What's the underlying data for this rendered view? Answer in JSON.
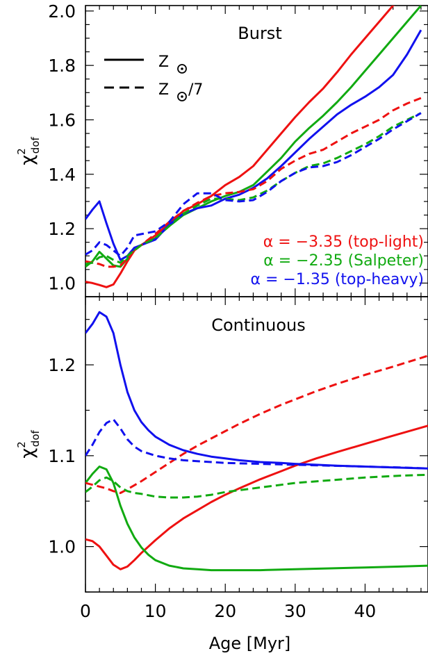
{
  "chart_data": [
    {
      "type": "line",
      "panel": "top",
      "title": "Burst",
      "ylabel_main": "χ",
      "ylabel_sup": "2",
      "ylabel_sub": "dof",
      "xlim": [
        0,
        49
      ],
      "ylim": [
        0.95,
        2.02
      ],
      "yticks": [
        1.0,
        1.2,
        1.4,
        1.6,
        1.8,
        2.0
      ],
      "ytick_labels": [
        "1.0",
        "1.2",
        "1.4",
        "1.6",
        "1.8",
        "2.0"
      ],
      "linestyle_legend": [
        {
          "style": "solid",
          "label": "Z",
          "suffix": ""
        },
        {
          "style": "dashed",
          "label": "Z",
          "suffix": "/7"
        }
      ],
      "color_legend": [
        {
          "label": "α = −3.35 (top-light)",
          "color": "#ee1111"
        },
        {
          "label": "α = −2.35 (Salpeter)",
          "color": "#11aa11"
        },
        {
          "label": "α = −1.35 (top-heavy)",
          "color": "#1111ee"
        }
      ],
      "series": [
        {
          "color": "#ee1111",
          "style": "solid",
          "x": [
            0,
            1,
            2,
            3,
            4,
            5,
            6,
            7,
            8,
            10,
            12,
            14,
            16,
            18,
            20,
            22,
            24,
            26,
            28,
            30,
            32,
            34,
            36,
            38,
            40,
            42,
            44,
            46,
            48
          ],
          "y": [
            1.005,
            1.0,
            0.993,
            0.985,
            0.995,
            1.035,
            1.08,
            1.12,
            1.14,
            1.175,
            1.22,
            1.265,
            1.29,
            1.32,
            1.36,
            1.39,
            1.43,
            1.49,
            1.55,
            1.61,
            1.665,
            1.715,
            1.775,
            1.84,
            1.9,
            1.96,
            2.02,
            2.06,
            2.1
          ]
        },
        {
          "color": "#11aa11",
          "style": "solid",
          "x": [
            0,
            1,
            2,
            3,
            4,
            5,
            6,
            7,
            8,
            10,
            12,
            14,
            16,
            18,
            20,
            22,
            24,
            26,
            28,
            30,
            32,
            34,
            36,
            38,
            40,
            42,
            44,
            46,
            48
          ],
          "y": [
            1.06,
            1.08,
            1.115,
            1.09,
            1.065,
            1.06,
            1.09,
            1.125,
            1.14,
            1.165,
            1.21,
            1.25,
            1.275,
            1.3,
            1.32,
            1.335,
            1.36,
            1.41,
            1.46,
            1.52,
            1.57,
            1.615,
            1.665,
            1.72,
            1.78,
            1.84,
            1.9,
            1.96,
            2.02
          ]
        },
        {
          "color": "#1111ee",
          "style": "solid",
          "x": [
            0,
            1,
            2,
            3,
            4,
            5,
            6,
            7,
            8,
            10,
            12,
            14,
            16,
            18,
            20,
            22,
            24,
            26,
            28,
            30,
            32,
            34,
            36,
            38,
            40,
            42,
            44,
            46,
            48
          ],
          "y": [
            1.235,
            1.27,
            1.3,
            1.22,
            1.145,
            1.085,
            1.1,
            1.13,
            1.14,
            1.16,
            1.215,
            1.255,
            1.275,
            1.285,
            1.31,
            1.325,
            1.35,
            1.385,
            1.43,
            1.48,
            1.53,
            1.575,
            1.62,
            1.655,
            1.685,
            1.72,
            1.765,
            1.84,
            1.93
          ]
        },
        {
          "color": "#ee1111",
          "style": "dashed",
          "x": [
            0,
            1,
            2,
            3,
            4,
            5,
            6,
            7,
            8,
            10,
            12,
            14,
            16,
            18,
            20,
            22,
            24,
            26,
            28,
            30,
            32,
            34,
            36,
            38,
            40,
            42,
            44,
            46,
            48
          ],
          "y": [
            1.08,
            1.075,
            1.07,
            1.06,
            1.06,
            1.065,
            1.09,
            1.12,
            1.14,
            1.18,
            1.225,
            1.265,
            1.295,
            1.32,
            1.33,
            1.335,
            1.345,
            1.375,
            1.42,
            1.45,
            1.475,
            1.49,
            1.52,
            1.55,
            1.575,
            1.6,
            1.635,
            1.66,
            1.68
          ]
        },
        {
          "color": "#11aa11",
          "style": "dashed",
          "x": [
            0,
            1,
            2,
            3,
            4,
            5,
            6,
            7,
            8,
            10,
            12,
            14,
            16,
            18,
            20,
            22,
            24,
            26,
            28,
            30,
            32,
            34,
            36,
            38,
            40,
            42,
            44,
            46,
            48
          ],
          "y": [
            1.07,
            1.075,
            1.095,
            1.1,
            1.085,
            1.075,
            1.1,
            1.12,
            1.14,
            1.165,
            1.21,
            1.255,
            1.285,
            1.31,
            1.31,
            1.305,
            1.315,
            1.34,
            1.375,
            1.405,
            1.43,
            1.44,
            1.46,
            1.485,
            1.51,
            1.54,
            1.575,
            1.6,
            1.625
          ]
        },
        {
          "color": "#1111ee",
          "style": "dashed",
          "x": [
            0,
            1,
            2,
            3,
            4,
            5,
            6,
            7,
            8,
            10,
            12,
            14,
            16,
            18,
            20,
            22,
            24,
            26,
            28,
            30,
            32,
            34,
            36,
            38,
            40,
            42,
            44,
            46,
            48
          ],
          "y": [
            1.105,
            1.12,
            1.15,
            1.14,
            1.12,
            1.1,
            1.13,
            1.175,
            1.18,
            1.19,
            1.225,
            1.29,
            1.33,
            1.33,
            1.305,
            1.3,
            1.305,
            1.335,
            1.375,
            1.405,
            1.425,
            1.43,
            1.445,
            1.47,
            1.5,
            1.53,
            1.565,
            1.595,
            1.625
          ]
        }
      ]
    },
    {
      "type": "line",
      "panel": "bottom",
      "title": "Continuous",
      "xlabel": "Age [Myr]",
      "ylabel_main": "χ",
      "ylabel_sup": "2",
      "ylabel_sub": "dof",
      "xlim": [
        0,
        49
      ],
      "ylim": [
        0.95,
        1.275
      ],
      "xticks": [
        0,
        10,
        20,
        30,
        40
      ],
      "xtick_labels": [
        "0",
        "10",
        "20",
        "30",
        "40"
      ],
      "yticks": [
        1.0,
        1.1,
        1.2
      ],
      "ytick_labels": [
        "1.0",
        "1.1",
        "1.2"
      ],
      "series": [
        {
          "color": "#ee1111",
          "style": "solid",
          "x": [
            0,
            1,
            2,
            3,
            4,
            5,
            6,
            7,
            8,
            10,
            12,
            14,
            16,
            18,
            20,
            22,
            25,
            28,
            30,
            33,
            36,
            40,
            44,
            49
          ],
          "y": [
            1.008,
            1.006,
            1.0,
            0.99,
            0.98,
            0.975,
            0.978,
            0.985,
            0.993,
            1.007,
            1.02,
            1.031,
            1.04,
            1.049,
            1.057,
            1.064,
            1.074,
            1.083,
            1.089,
            1.097,
            1.104,
            1.113,
            1.122,
            1.133
          ]
        },
        {
          "color": "#11aa11",
          "style": "solid",
          "x": [
            0,
            1,
            2,
            3,
            4,
            5,
            6,
            7,
            8,
            9,
            10,
            12,
            14,
            16,
            18,
            20,
            22,
            25,
            30,
            35,
            40,
            45,
            49
          ],
          "y": [
            1.07,
            1.08,
            1.088,
            1.085,
            1.07,
            1.045,
            1.025,
            1.01,
            0.999,
            0.991,
            0.985,
            0.979,
            0.976,
            0.975,
            0.974,
            0.974,
            0.974,
            0.974,
            0.975,
            0.976,
            0.977,
            0.978,
            0.979
          ]
        },
        {
          "color": "#1111ee",
          "style": "solid",
          "x": [
            0,
            1,
            2,
            3,
            4,
            5,
            6,
            7,
            8,
            9,
            10,
            12,
            14,
            16,
            18,
            20,
            22,
            25,
            28,
            30,
            33,
            36,
            40,
            44,
            49
          ],
          "y": [
            1.235,
            1.245,
            1.258,
            1.253,
            1.235,
            1.2,
            1.17,
            1.15,
            1.137,
            1.128,
            1.121,
            1.112,
            1.106,
            1.102,
            1.099,
            1.097,
            1.095,
            1.093,
            1.092,
            1.091,
            1.09,
            1.089,
            1.088,
            1.087,
            1.086
          ]
        },
        {
          "color": "#ee1111",
          "style": "dashed",
          "x": [
            0,
            1,
            2,
            3,
            4,
            5,
            6,
            8,
            10,
            12,
            14,
            16,
            18,
            20,
            22,
            25,
            28,
            30,
            33,
            36,
            40,
            44,
            49
          ],
          "y": [
            1.07,
            1.068,
            1.066,
            1.064,
            1.061,
            1.059,
            1.063,
            1.072,
            1.082,
            1.092,
            1.102,
            1.111,
            1.119,
            1.127,
            1.135,
            1.146,
            1.156,
            1.162,
            1.171,
            1.179,
            1.189,
            1.198,
            1.21
          ]
        },
        {
          "color": "#11aa11",
          "style": "dashed",
          "x": [
            0,
            1,
            2,
            3,
            4,
            5,
            6,
            7,
            8,
            10,
            12,
            14,
            16,
            18,
            20,
            22,
            25,
            30,
            35,
            40,
            45,
            49
          ],
          "y": [
            1.06,
            1.066,
            1.073,
            1.076,
            1.072,
            1.065,
            1.061,
            1.059,
            1.058,
            1.055,
            1.054,
            1.054,
            1.055,
            1.057,
            1.06,
            1.062,
            1.065,
            1.07,
            1.073,
            1.076,
            1.078,
            1.079
          ]
        },
        {
          "color": "#1111ee",
          "style": "dashed",
          "x": [
            0,
            1,
            2,
            3,
            4,
            5,
            6,
            7,
            8,
            10,
            12,
            14,
            16,
            18,
            20,
            25,
            30,
            35,
            40,
            45,
            49
          ],
          "y": [
            1.1,
            1.112,
            1.126,
            1.136,
            1.14,
            1.13,
            1.118,
            1.11,
            1.105,
            1.1,
            1.097,
            1.095,
            1.094,
            1.093,
            1.092,
            1.091,
            1.09,
            1.089,
            1.088,
            1.087,
            1.086
          ]
        }
      ]
    }
  ]
}
